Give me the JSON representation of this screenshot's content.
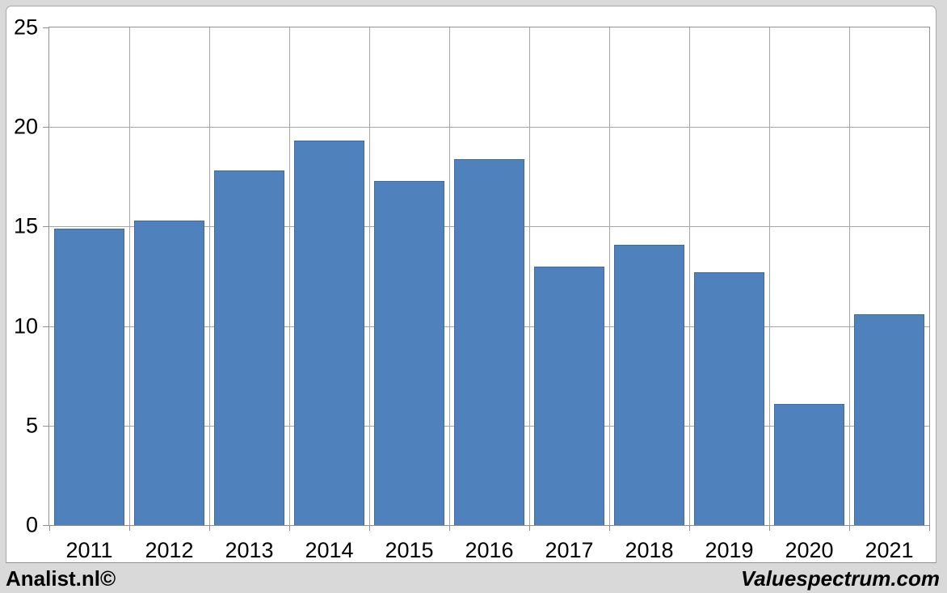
{
  "chart_data": {
    "type": "bar",
    "title": "",
    "xlabel": "",
    "ylabel": "",
    "categories": [
      "2011",
      "2012",
      "2013",
      "2014",
      "2015",
      "2016",
      "2017",
      "2018",
      "2019",
      "2020",
      "2021"
    ],
    "values": [
      14.9,
      15.3,
      17.8,
      19.3,
      17.3,
      18.4,
      13.0,
      14.1,
      12.7,
      6.1,
      10.6
    ],
    "ylim": [
      0,
      25
    ],
    "yticks": [
      0,
      5,
      10,
      15,
      20,
      25
    ],
    "grid": "horizontal-and-vertical-category-gridlines",
    "legend_position": "none",
    "bar_color": "#4f81bd",
    "bar_border_color": "#44699d",
    "gridline_color": "#a6a6a6",
    "axis_color": "#919191"
  },
  "footer": {
    "left_label": "Analist.nl©",
    "right_label": "Valuespectrum.com"
  },
  "colors": {
    "page_background": "#d9d9d9",
    "chart_background": "#ffffff",
    "text": "#000000"
  }
}
